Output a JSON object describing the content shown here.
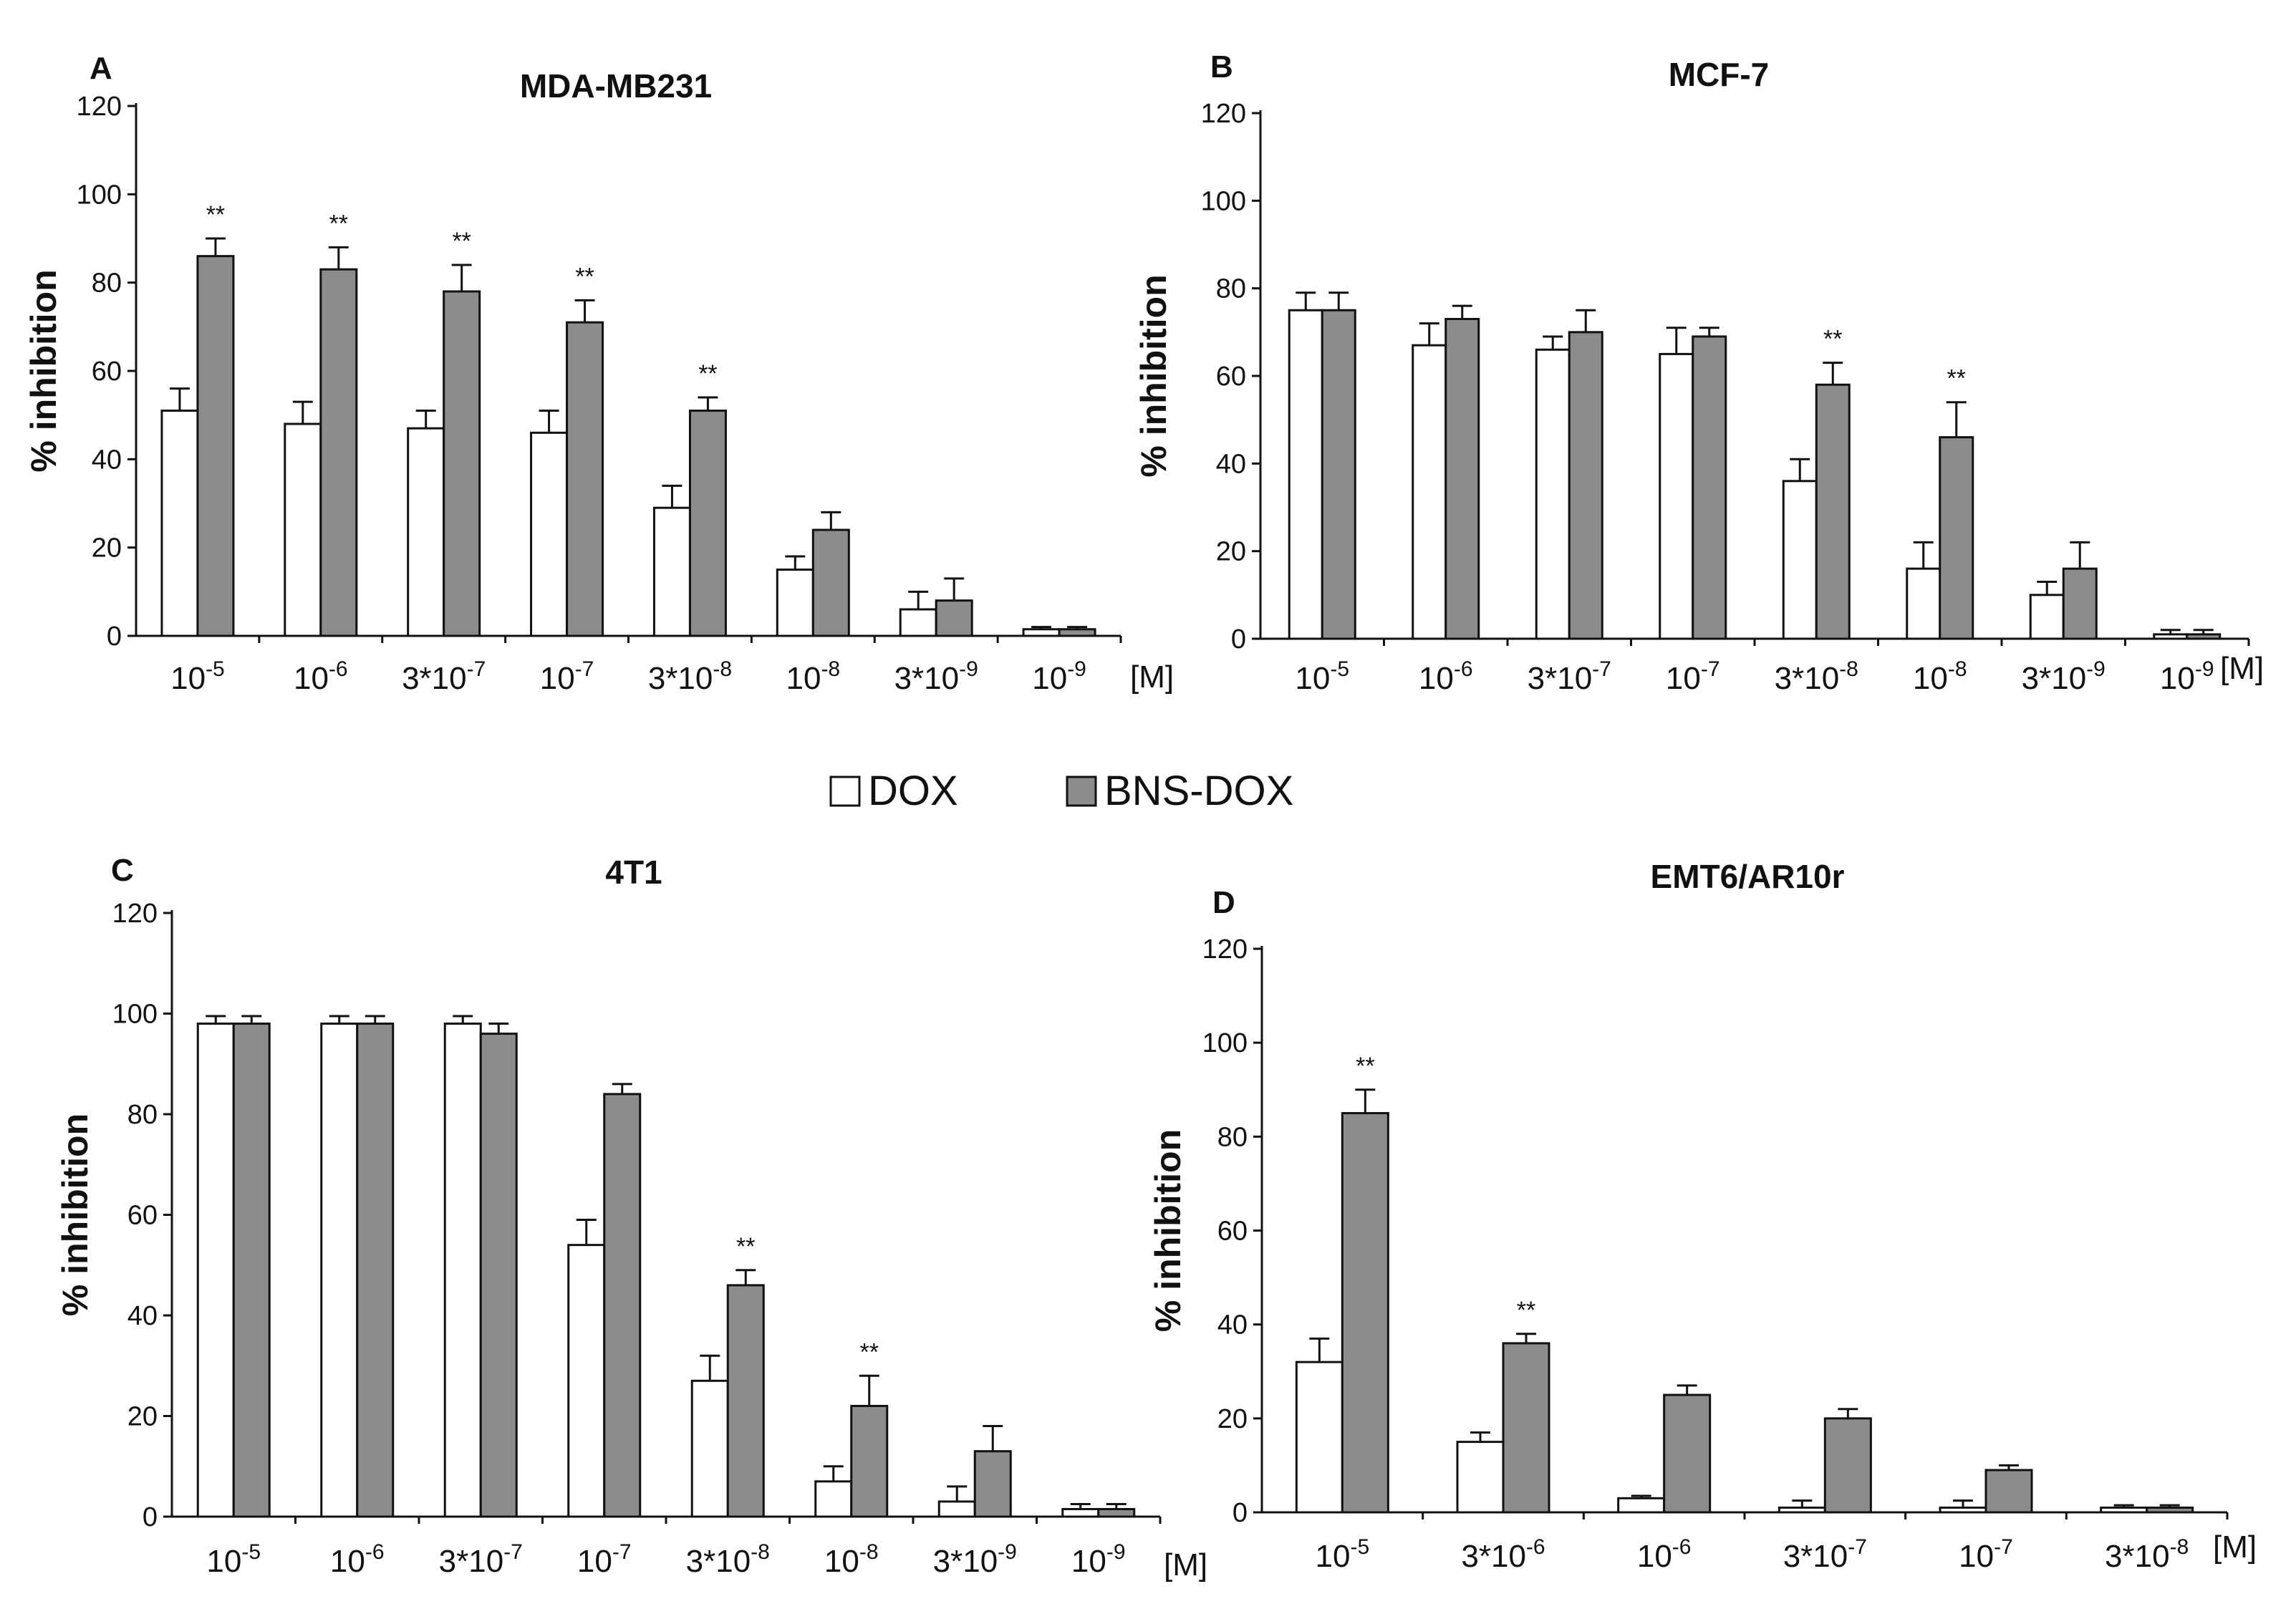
{
  "chart_data": [
    {
      "type": "bar",
      "panel": "A",
      "title": "MDA-MB231",
      "ylabel": "% inhibition",
      "xlabel": "",
      "unit": "[M]",
      "ylim": [
        0,
        120
      ],
      "yticks": [
        0,
        20,
        40,
        60,
        80,
        100,
        120
      ],
      "categories": [
        {
          "base": "10",
          "exp": "-5"
        },
        {
          "base": "10",
          "exp": "-6"
        },
        {
          "base": "3*10",
          "exp": "-7"
        },
        {
          "base": "10",
          "exp": "-7"
        },
        {
          "base": "3*10",
          "exp": "-8"
        },
        {
          "base": "10",
          "exp": "-8"
        },
        {
          "base": "3*10",
          "exp": "-9"
        },
        {
          "base": "10",
          "exp": "-9"
        }
      ],
      "series": [
        {
          "name": "DOX",
          "values": [
            51,
            48,
            47,
            46,
            29,
            15,
            6,
            1.5
          ],
          "errors": [
            5,
            5,
            4,
            5,
            5,
            3,
            4,
            0.5
          ]
        },
        {
          "name": "BNS-DOX",
          "values": [
            86,
            83,
            78,
            71,
            51,
            24,
            8,
            1.5
          ],
          "errors": [
            4,
            5,
            6,
            5,
            3,
            4,
            5,
            0.5
          ]
        }
      ],
      "significance": [
        "**",
        "**",
        "**",
        "**",
        "**",
        "",
        "",
        ""
      ]
    },
    {
      "type": "bar",
      "panel": "B",
      "title": "MCF-7",
      "ylabel": "% inhibition",
      "xlabel": "",
      "unit": "[M]",
      "ylim": [
        0,
        120
      ],
      "yticks": [
        0,
        20,
        40,
        60,
        80,
        100,
        120
      ],
      "categories": [
        {
          "base": "10",
          "exp": "-5"
        },
        {
          "base": "10",
          "exp": "-6"
        },
        {
          "base": "3*10",
          "exp": "-7"
        },
        {
          "base": "10",
          "exp": "-7"
        },
        {
          "base": "3*10",
          "exp": "-8"
        },
        {
          "base": "10",
          "exp": "-8"
        },
        {
          "base": "3*10",
          "exp": "-9"
        },
        {
          "base": "10",
          "exp": "-9"
        }
      ],
      "series": [
        {
          "name": "DOX",
          "values": [
            75,
            67,
            66,
            65,
            36,
            16,
            10,
            1
          ],
          "errors": [
            4,
            5,
            3,
            6,
            5,
            6,
            3,
            1
          ]
        },
        {
          "name": "BNS-DOX",
          "values": [
            75,
            73,
            70,
            69,
            58,
            46,
            16,
            1
          ],
          "errors": [
            4,
            3,
            5,
            2,
            5,
            8,
            6,
            1
          ]
        }
      ],
      "significance": [
        "",
        "",
        "",
        "",
        "**",
        "**",
        "",
        ""
      ]
    },
    {
      "type": "bar",
      "panel": "C",
      "title": "4T1",
      "ylabel": "% inhibition",
      "xlabel": "",
      "unit": "[M]",
      "ylim": [
        0,
        120
      ],
      "yticks": [
        0,
        20,
        40,
        60,
        80,
        100,
        120
      ],
      "categories": [
        {
          "base": "10",
          "exp": "-5"
        },
        {
          "base": "10",
          "exp": "-6"
        },
        {
          "base": "3*10",
          "exp": "-7"
        },
        {
          "base": "10",
          "exp": "-7"
        },
        {
          "base": "3*10",
          "exp": "-8"
        },
        {
          "base": "10",
          "exp": "-8"
        },
        {
          "base": "3*10",
          "exp": "-9"
        },
        {
          "base": "10",
          "exp": "-9"
        }
      ],
      "series": [
        {
          "name": "DOX",
          "values": [
            98,
            98,
            98,
            54,
            27,
            7,
            3,
            1.5
          ],
          "errors": [
            1.5,
            1.5,
            1.5,
            5,
            5,
            3,
            3,
            1
          ]
        },
        {
          "name": "BNS-DOX",
          "values": [
            98,
            98,
            96,
            84,
            46,
            22,
            13,
            1.5
          ],
          "errors": [
            1.5,
            1.5,
            2,
            2,
            3,
            6,
            5,
            1
          ]
        }
      ],
      "significance": [
        "",
        "",
        "",
        "",
        "**",
        "**",
        "",
        ""
      ]
    },
    {
      "type": "bar",
      "panel": "D",
      "title": "EMT6/AR10r",
      "ylabel": "% inhibition",
      "xlabel": "",
      "unit": "[M]",
      "ylim": [
        0,
        120
      ],
      "yticks": [
        0,
        20,
        40,
        60,
        80,
        100,
        120
      ],
      "categories": [
        {
          "base": "10",
          "exp": "-5"
        },
        {
          "base": "3*10",
          "exp": "-6"
        },
        {
          "base": "10",
          "exp": "-6"
        },
        {
          "base": "3*10",
          "exp": "-7"
        },
        {
          "base": "10",
          "exp": "-7"
        },
        {
          "base": "3*10",
          "exp": "-8"
        }
      ],
      "series": [
        {
          "name": "DOX",
          "values": [
            32,
            15,
            3,
            1,
            1,
            1
          ],
          "errors": [
            5,
            2,
            0.5,
            1.5,
            1.5,
            0.5
          ]
        },
        {
          "name": "BNS-DOX",
          "values": [
            85,
            36,
            25,
            20,
            9,
            1
          ],
          "errors": [
            5,
            2,
            2,
            2,
            1,
            0.5
          ]
        }
      ],
      "significance": [
        "**",
        "**",
        "",
        "",
        "",
        ""
      ]
    }
  ],
  "legend": {
    "items": [
      {
        "label": "DOX",
        "color": "#ffffff"
      },
      {
        "label": "BNS-DOX",
        "color": "#8c8c8c"
      }
    ]
  },
  "colors": {
    "dox": "#ffffff",
    "bns_dox": "#8c8c8c",
    "stroke": "#111111"
  }
}
